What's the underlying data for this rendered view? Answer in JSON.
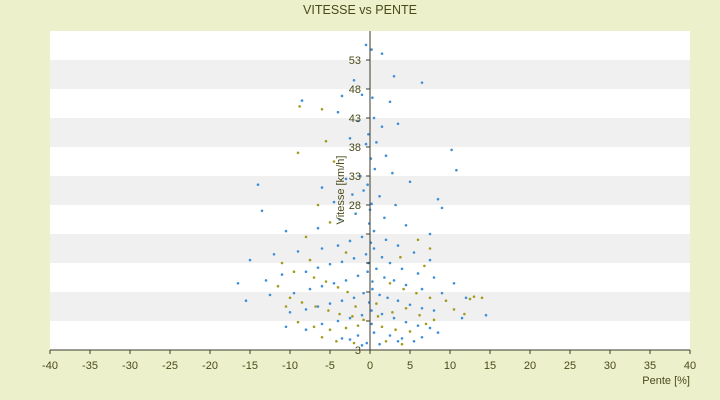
{
  "chart_data": {
    "type": "scatter",
    "title": "VITESSE vs PENTE",
    "xlabel": "Pente [%]",
    "ylabel": "Vitesse [km/h]",
    "xlim": [
      -40,
      40
    ],
    "ylim": [
      3,
      58
    ],
    "x_ticks": [
      -40,
      -35,
      -30,
      -25,
      -20,
      -15,
      -10,
      -5,
      0,
      5,
      10,
      15,
      20,
      25,
      30,
      35,
      40
    ],
    "y_ticks": [
      3,
      8,
      13,
      18,
      23,
      28,
      33,
      38,
      43,
      48,
      53
    ],
    "y_tick_labels_shown": [
      {
        "value": 3,
        "label": "3"
      },
      {
        "value": 28,
        "label": "28"
      },
      {
        "value": 33,
        "label": "33"
      },
      {
        "value": 38,
        "label": "38"
      },
      {
        "value": 43,
        "label": "43"
      },
      {
        "value": 48,
        "label": "48"
      },
      {
        "value": 53,
        "label": "53"
      }
    ],
    "grid": "horizontal alternating bands",
    "colors": {
      "series_a": "#3d8fd6",
      "series_b": "#a39b1a",
      "background": "#ecf1cc",
      "band_light": "#ffffff",
      "band_dark": "#f0f0f0"
    },
    "series": [
      {
        "color": "#3d8fd6",
        "points": [
          [
            -0.5,
            55.6
          ],
          [
            0.2,
            54.8
          ],
          [
            1.5,
            54.1
          ],
          [
            -2.0,
            49.5
          ],
          [
            3.0,
            50.2
          ],
          [
            6.5,
            49.1
          ],
          [
            -1.0,
            47.0
          ],
          [
            0.3,
            46.5
          ],
          [
            -3.5,
            46.8
          ],
          [
            2.5,
            45.8
          ],
          [
            -8.5,
            46.0
          ],
          [
            -4.0,
            44.0
          ],
          [
            -1.5,
            42.5
          ],
          [
            0.5,
            43.0
          ],
          [
            1.5,
            41.5
          ],
          [
            3.5,
            42.0
          ],
          [
            -2.5,
            39.5
          ],
          [
            -0.5,
            38.5
          ],
          [
            0.8,
            38.8
          ],
          [
            2.0,
            36.5
          ],
          [
            10.2,
            37.5
          ],
          [
            10.8,
            34.0
          ],
          [
            -14.0,
            31.5
          ],
          [
            -6.0,
            31.0
          ],
          [
            -3.0,
            32.5
          ],
          [
            -1.2,
            33.0
          ],
          [
            0.6,
            34.2
          ],
          [
            2.8,
            33.5
          ],
          [
            5.0,
            32.0
          ],
          [
            8.5,
            29.0
          ],
          [
            -13.5,
            27.0
          ],
          [
            -4.5,
            28.5
          ],
          [
            -2.2,
            29.8
          ],
          [
            -0.8,
            30.5
          ],
          [
            1.2,
            29.5
          ],
          [
            3.2,
            28.0
          ],
          [
            9.0,
            27.5
          ],
          [
            -10.5,
            23.5
          ],
          [
            -6.5,
            24.0
          ],
          [
            -3.8,
            25.5
          ],
          [
            -1.8,
            26.5
          ],
          [
            0.0,
            27.2
          ],
          [
            1.8,
            25.8
          ],
          [
            4.5,
            24.5
          ],
          [
            7.5,
            23.0
          ],
          [
            -15.0,
            18.5
          ],
          [
            -12.0,
            19.5
          ],
          [
            -9.0,
            20.0
          ],
          [
            -6.0,
            20.5
          ],
          [
            -4.0,
            21.0
          ],
          [
            -2.5,
            21.8
          ],
          [
            -1.0,
            22.5
          ],
          [
            0.5,
            23.5
          ],
          [
            2.0,
            22.0
          ],
          [
            3.5,
            21.0
          ],
          [
            5.5,
            19.8
          ],
          [
            7.5,
            18.5
          ],
          [
            -16.5,
            14.5
          ],
          [
            -13.0,
            15.0
          ],
          [
            -11.0,
            16.0
          ],
          [
            -8.0,
            16.5
          ],
          [
            -6.5,
            17.2
          ],
          [
            -5.0,
            17.8
          ],
          [
            -3.5,
            18.2
          ],
          [
            -2.0,
            18.8
          ],
          [
            -0.5,
            19.5
          ],
          [
            0.5,
            20.5
          ],
          [
            1.5,
            19.0
          ],
          [
            2.5,
            18.0
          ],
          [
            4.0,
            17.0
          ],
          [
            6.0,
            16.2
          ],
          [
            8.0,
            15.5
          ],
          [
            10.5,
            14.5
          ],
          [
            -15.5,
            11.5
          ],
          [
            -12.5,
            12.5
          ],
          [
            -9.5,
            12.8
          ],
          [
            -7.5,
            13.5
          ],
          [
            -6.0,
            14.0
          ],
          [
            -4.5,
            14.5
          ],
          [
            -3.0,
            15.0
          ],
          [
            -1.5,
            15.8
          ],
          [
            -0.3,
            16.5
          ],
          [
            0.8,
            17.0
          ],
          [
            1.8,
            15.5
          ],
          [
            3.0,
            15.0
          ],
          [
            4.5,
            14.2
          ],
          [
            6.5,
            13.5
          ],
          [
            9.0,
            12.8
          ],
          [
            12.0,
            12.0
          ],
          [
            14.5,
            9.0
          ],
          [
            -10.0,
            9.5
          ],
          [
            -8.0,
            10.0
          ],
          [
            -6.5,
            10.5
          ],
          [
            -5.0,
            11.0
          ],
          [
            -3.5,
            11.5
          ],
          [
            -2.0,
            12.0
          ],
          [
            -0.8,
            12.8
          ],
          [
            0.3,
            13.5
          ],
          [
            1.2,
            12.5
          ],
          [
            2.2,
            12.0
          ],
          [
            3.5,
            11.5
          ],
          [
            5.0,
            10.8
          ],
          [
            6.5,
            10.2
          ],
          [
            8.0,
            9.8
          ],
          [
            11.5,
            8.5
          ],
          [
            -10.5,
            7.0
          ],
          [
            -8.0,
            6.5
          ],
          [
            -6.0,
            7.5
          ],
          [
            -4.0,
            8.0
          ],
          [
            -2.5,
            8.5
          ],
          [
            -1.0,
            9.0
          ],
          [
            0.2,
            9.8
          ],
          [
            1.5,
            9.2
          ],
          [
            3.0,
            8.5
          ],
          [
            4.5,
            7.8
          ],
          [
            6.0,
            7.2
          ],
          [
            7.5,
            6.8
          ],
          [
            -3.5,
            5.0
          ],
          [
            -1.5,
            5.5
          ],
          [
            0.5,
            6.0
          ],
          [
            2.5,
            5.5
          ],
          [
            4.0,
            5.0
          ],
          [
            5.5,
            4.5
          ],
          [
            -0.2,
            40.2
          ],
          [
            0.1,
            36.0
          ],
          [
            -0.3,
            31.5
          ],
          [
            0.2,
            28.2
          ],
          [
            -0.1,
            24.8
          ],
          [
            0.1,
            21.5
          ],
          [
            -0.2,
            18.0
          ],
          [
            0.3,
            14.8
          ],
          [
            -0.1,
            11.2
          ],
          [
            0.2,
            7.5
          ],
          [
            -0.4,
            4.2
          ],
          [
            -1.0,
            3.8
          ],
          [
            1.2,
            4.0
          ],
          [
            -2.5,
            4.8
          ],
          [
            3.5,
            4.5
          ],
          [
            6.5,
            5.2
          ],
          [
            8.5,
            6.0
          ]
        ]
      },
      {
        "color": "#a39b1a",
        "points": [
          [
            -8.8,
            45.0
          ],
          [
            -6.0,
            44.5
          ],
          [
            -9.0,
            37.0
          ],
          [
            -5.5,
            39.0
          ],
          [
            -4.5,
            35.5
          ],
          [
            -6.5,
            28.0
          ],
          [
            -5.0,
            25.0
          ],
          [
            -8.0,
            22.5
          ],
          [
            6.0,
            22.0
          ],
          [
            7.5,
            20.5
          ],
          [
            -11.0,
            18.0
          ],
          [
            -9.5,
            16.5
          ],
          [
            -7.0,
            15.5
          ],
          [
            -5.5,
            14.8
          ],
          [
            -4.0,
            13.8
          ],
          [
            -2.8,
            13.0
          ],
          [
            2.5,
            14.5
          ],
          [
            4.2,
            13.5
          ],
          [
            5.8,
            12.8
          ],
          [
            7.5,
            12.0
          ],
          [
            9.5,
            11.5
          ],
          [
            13.0,
            12.2
          ],
          [
            14.0,
            12.0
          ],
          [
            12.5,
            11.8
          ],
          [
            -10.0,
            12.0
          ],
          [
            -8.5,
            11.2
          ],
          [
            -6.8,
            10.5
          ],
          [
            -5.2,
            9.8
          ],
          [
            -3.8,
            9.2
          ],
          [
            -2.2,
            8.8
          ],
          [
            -0.8,
            8.2
          ],
          [
            1.0,
            8.8
          ],
          [
            2.8,
            9.5
          ],
          [
            4.5,
            10.2
          ],
          [
            6.2,
            9.0
          ],
          [
            8.0,
            8.2
          ],
          [
            -9.0,
            7.8
          ],
          [
            -7.0,
            7.0
          ],
          [
            -5.0,
            6.5
          ],
          [
            -3.0,
            6.8
          ],
          [
            -1.5,
            7.2
          ],
          [
            1.5,
            7.0
          ],
          [
            3.2,
            6.5
          ],
          [
            5.0,
            6.2
          ],
          [
            7.0,
            7.5
          ],
          [
            -6.0,
            5.2
          ],
          [
            -4.2,
            4.5
          ],
          [
            -2.0,
            4.2
          ],
          [
            2.0,
            4.5
          ],
          [
            4.0,
            4.0
          ],
          [
            -11.5,
            14.0
          ],
          [
            -10.5,
            10.5
          ],
          [
            10.5,
            10.0
          ],
          [
            11.8,
            9.2
          ],
          [
            -7.5,
            18.5
          ],
          [
            6.8,
            17.5
          ],
          [
            -3.0,
            19.8
          ],
          [
            3.8,
            19.0
          ],
          [
            -1.8,
            10.5
          ],
          [
            0.8,
            11.0
          ]
        ]
      }
    ]
  }
}
